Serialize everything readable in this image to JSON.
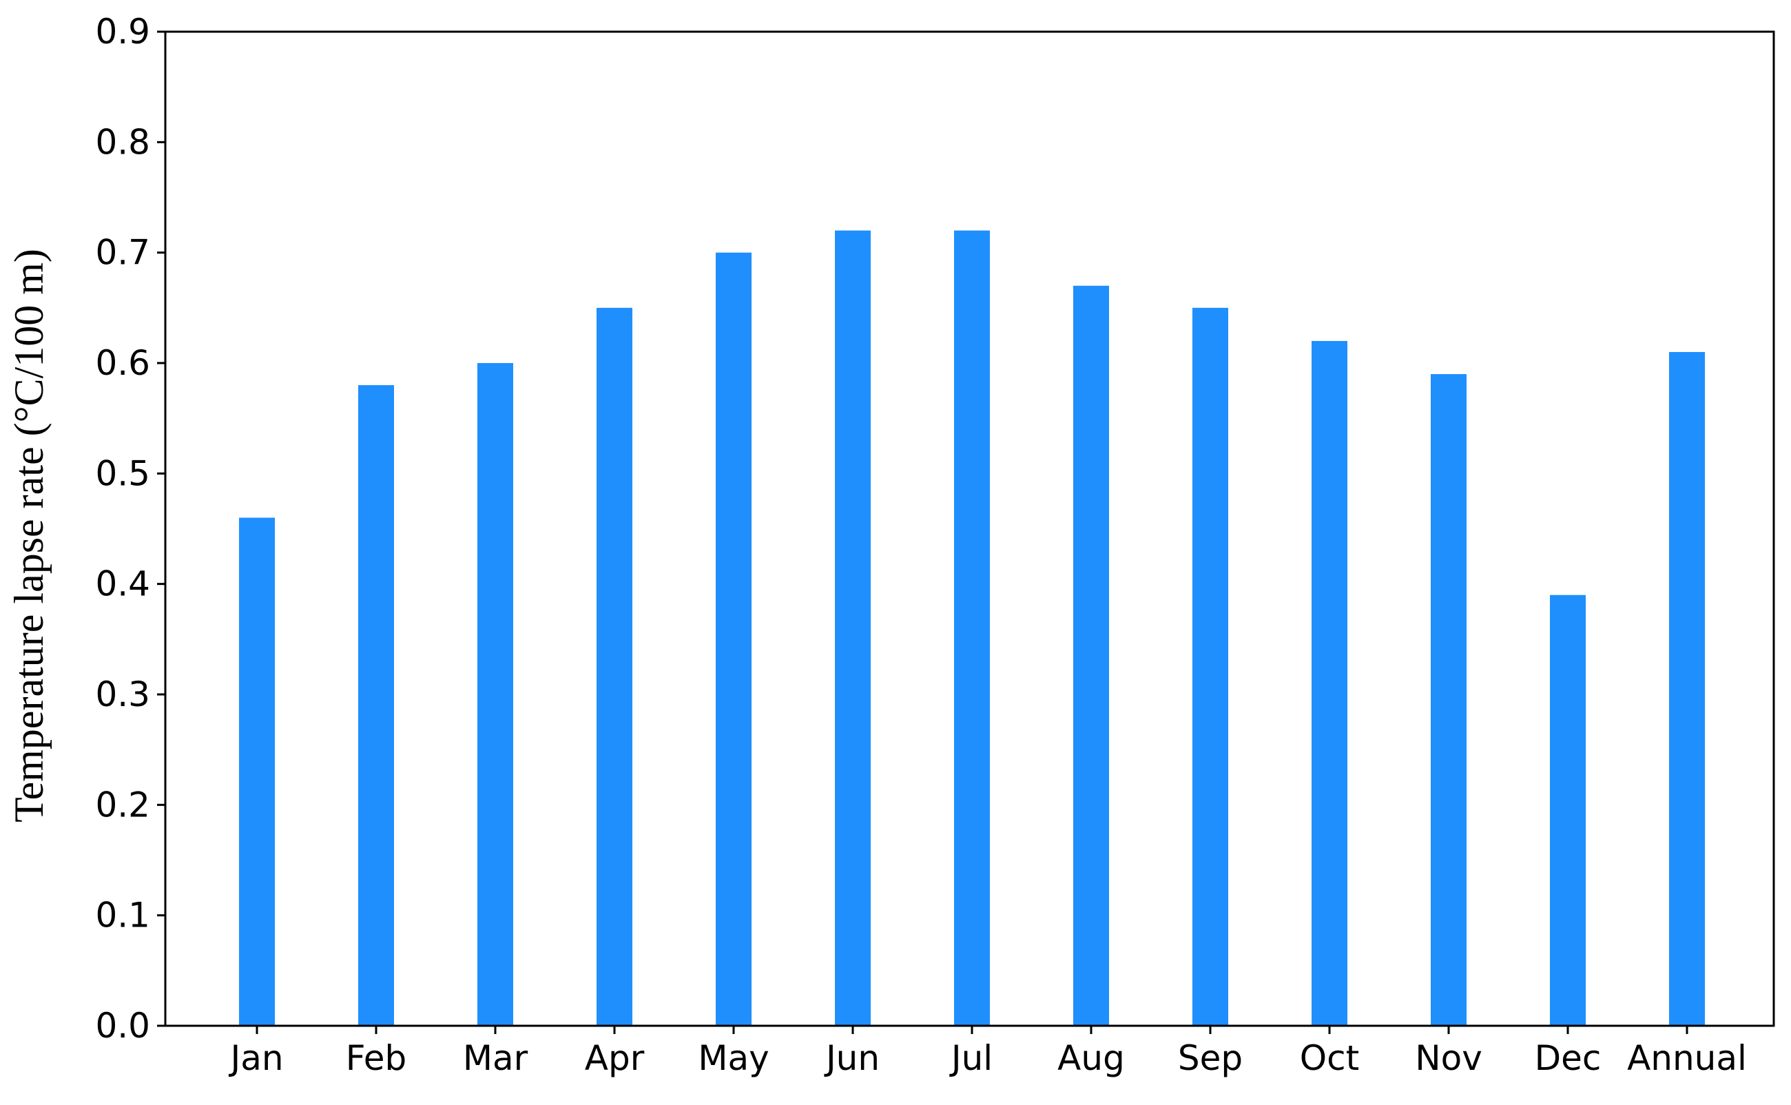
{
  "chart_data": {
    "type": "bar",
    "title": "",
    "xlabel": "",
    "ylabel": "Temperature lapse rate (°C/100 m)",
    "categories": [
      "Jan",
      "Feb",
      "Mar",
      "Apr",
      "May",
      "Jun",
      "Jul",
      "Aug",
      "Sep",
      "Oct",
      "Nov",
      "Dec",
      "Annual"
    ],
    "values": [
      0.46,
      0.58,
      0.6,
      0.65,
      0.7,
      0.72,
      0.72,
      0.67,
      0.65,
      0.62,
      0.59,
      0.39,
      0.61
    ],
    "ylim": [
      0,
      0.9
    ],
    "yticks": [
      "0.0",
      "0.1",
      "0.2",
      "0.3",
      "0.4",
      "0.5",
      "0.6",
      "0.7",
      "0.8",
      "0.9"
    ],
    "bar_color": "#1f8ffd",
    "grid": false,
    "legend": "none"
  }
}
